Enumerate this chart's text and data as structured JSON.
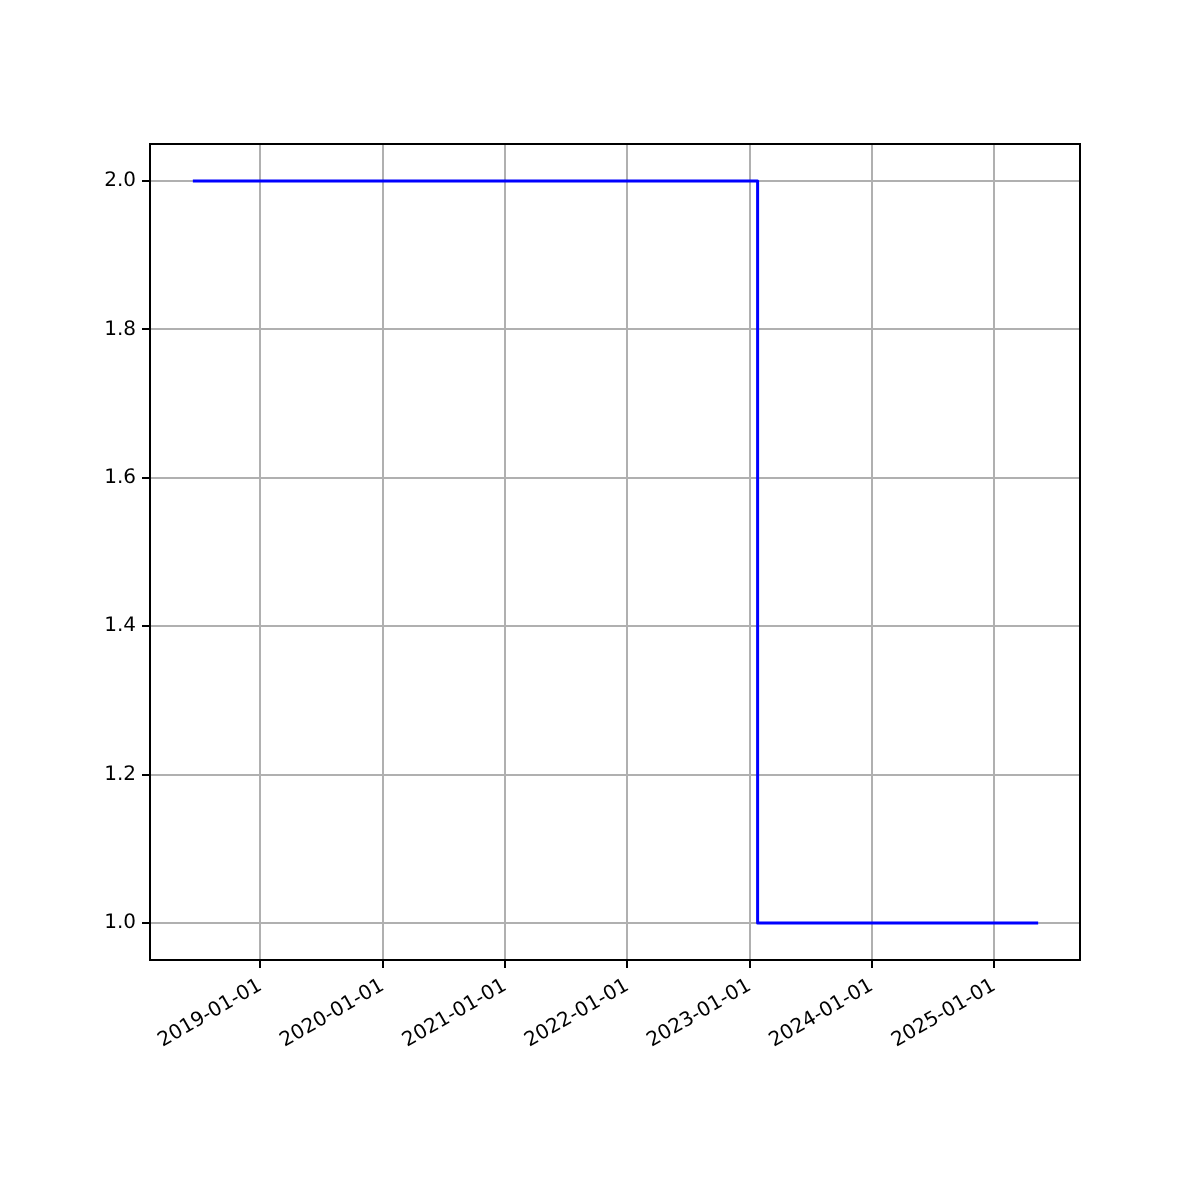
{
  "chart_data": {
    "type": "step",
    "x": [
      "2018-06-13",
      "2023-01-25",
      "2025-05-12"
    ],
    "series": [
      {
        "color": "#0000ff",
        "values": [
          2,
          1,
          1
        ]
      }
    ],
    "xlim": [
      "2018-02-05",
      "2025-09-14"
    ],
    "xticks": [
      "2019-01-01",
      "2020-01-01",
      "2021-01-01",
      "2022-01-01",
      "2023-01-01",
      "2024-01-01",
      "2025-01-01"
    ],
    "ylim": [
      0.95,
      2.05
    ],
    "yticks": [
      {
        "value": 1,
        "label": "1.0"
      },
      1.2,
      1.4,
      1.6,
      1.8,
      {
        "value": 2,
        "label": "2.0"
      }
    ],
    "grid": true,
    "legend": false
  }
}
